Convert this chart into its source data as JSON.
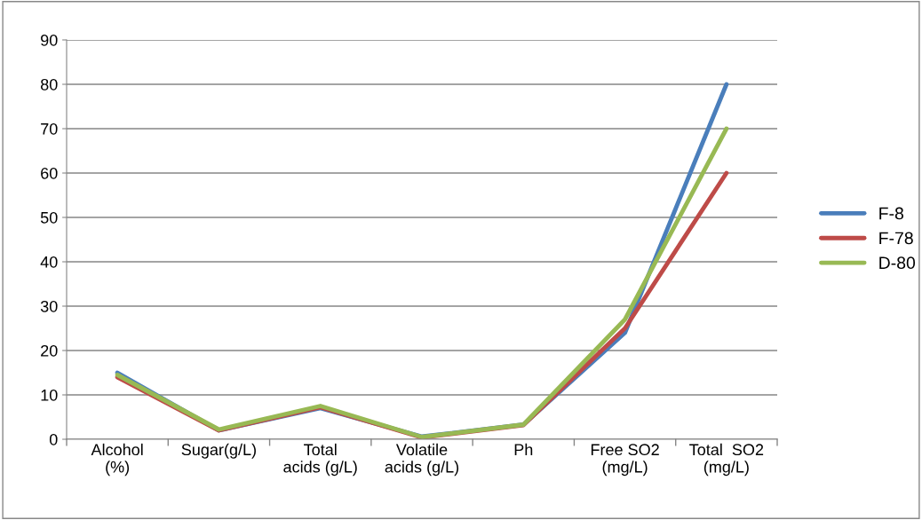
{
  "chart_data": {
    "type": "line",
    "categories": [
      "Alcohol\n(%)",
      "Sugar(g/L)",
      "Total\nacids (g/L)",
      "Volatile\nacids (g/L)",
      "Ph",
      "Free SO2\n(mg/L)",
      "Total  SO2\n(mg/L)"
    ],
    "series": [
      {
        "name": "F-8",
        "color": "#4a7ebb",
        "values": [
          15,
          2,
          7,
          0.6,
          3.3,
          24,
          80
        ]
      },
      {
        "name": "F-78",
        "color": "#be4b48",
        "values": [
          14,
          2,
          7.2,
          0.4,
          3.2,
          25,
          60
        ]
      },
      {
        "name": "D-80",
        "color": "#98b954",
        "values": [
          14.5,
          2.2,
          7.5,
          0.5,
          3.3,
          27,
          70
        ]
      }
    ],
    "ylim": [
      0,
      90
    ],
    "yticks": [
      0,
      10,
      20,
      30,
      40,
      50,
      60,
      70,
      80,
      90
    ],
    "grid": "y",
    "legend": "right",
    "marker": "none",
    "line_style": "solid"
  }
}
